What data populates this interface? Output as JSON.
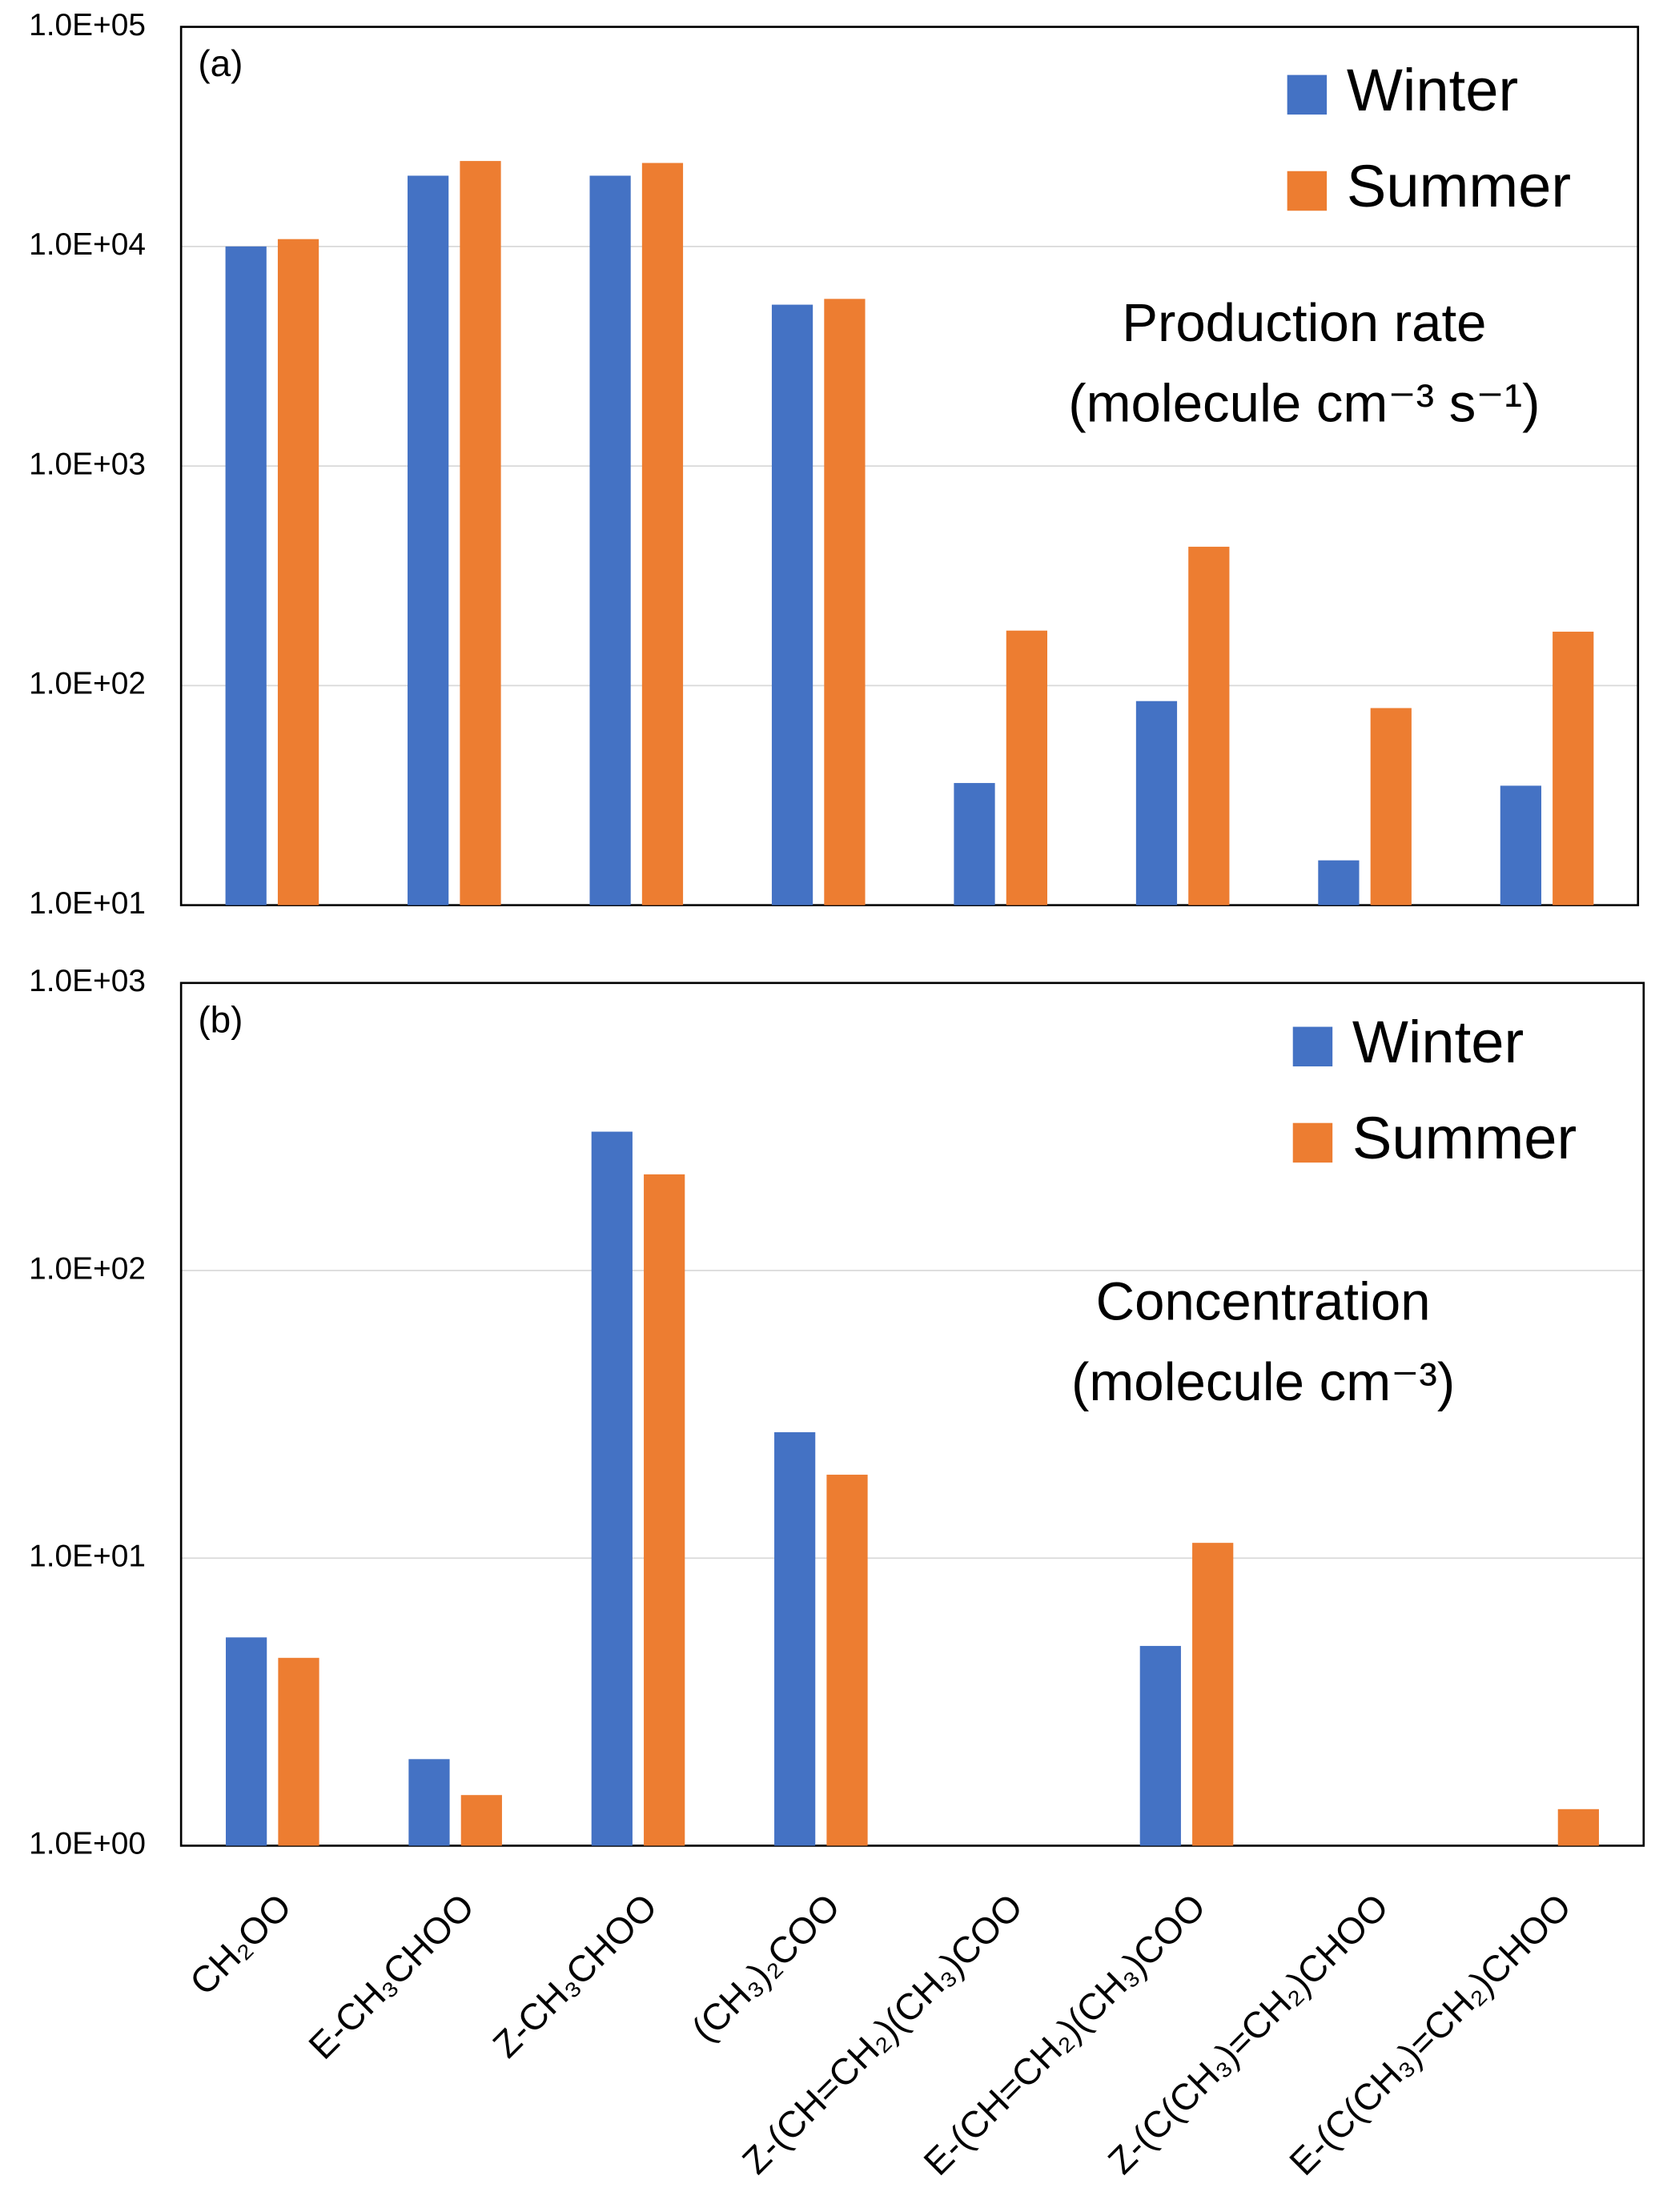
{
  "chart_data": [
    {
      "type": "bar",
      "panel_label": "(a)",
      "annotation": [
        "Production rate",
        "(molecule cm⁻³ s⁻¹)"
      ],
      "categories": [
        null,
        null,
        null,
        null,
        null,
        null,
        null,
        null
      ],
      "series": [
        {
          "name": "Winter",
          "color": "#4472c4",
          "values": [
            10000,
            21000,
            21000,
            5430,
            36,
            85,
            16,
            35
          ]
        },
        {
          "name": "Summer",
          "color": "#ed7d31",
          "values": [
            10800,
            24500,
            24000,
            5770,
            178,
            429,
            79,
            176
          ]
        }
      ],
      "log_scale": true,
      "ylim": [
        10,
        100000
      ],
      "yticks": [
        {
          "value": 10,
          "label": "1.0E+01"
        },
        {
          "value": 100,
          "label": "1.0E+02"
        },
        {
          "value": 1000,
          "label": "1.0E+03"
        },
        {
          "value": 10000,
          "label": "1.0E+04"
        },
        {
          "value": 100000,
          "label": "1.0E+05"
        }
      ],
      "grid": true,
      "legend": "upper right"
    },
    {
      "type": "bar",
      "panel_label": "(b)",
      "annotation": [
        "Concentration",
        "(molecule cm⁻³)"
      ],
      "categories": [
        "CH₂OO",
        "E-CH₃CHOO",
        "Z-CH₃CHOO",
        "(CH₃)₂COO",
        "Z-(CH=CH₂)(CH₃)COO",
        "E-(CH=CH₂)(CH₃)COO",
        "Z-(C(CH₃)=CH₂)CHOO",
        "E-(C(CH₃)=CH₂)CHOO"
      ],
      "series": [
        {
          "name": "Winter",
          "color": "#4472c4",
          "values": [
            5.3,
            2.0,
            304,
            27.4,
            null,
            4.95,
            null,
            null
          ]
        },
        {
          "name": "Summer",
          "color": "#ed7d31",
          "values": [
            4.5,
            1.5,
            216,
            19.5,
            null,
            11.3,
            null,
            1.34
          ]
        }
      ],
      "log_scale": true,
      "ylim": [
        1,
        1000
      ],
      "yticks": [
        {
          "value": 1,
          "label": "1.0E+00"
        },
        {
          "value": 10,
          "label": "1.0E+01"
        },
        {
          "value": 100,
          "label": "1.0E+02"
        },
        {
          "value": 1000,
          "label": "1.0E+03"
        }
      ],
      "grid": true,
      "legend": "upper right"
    }
  ]
}
